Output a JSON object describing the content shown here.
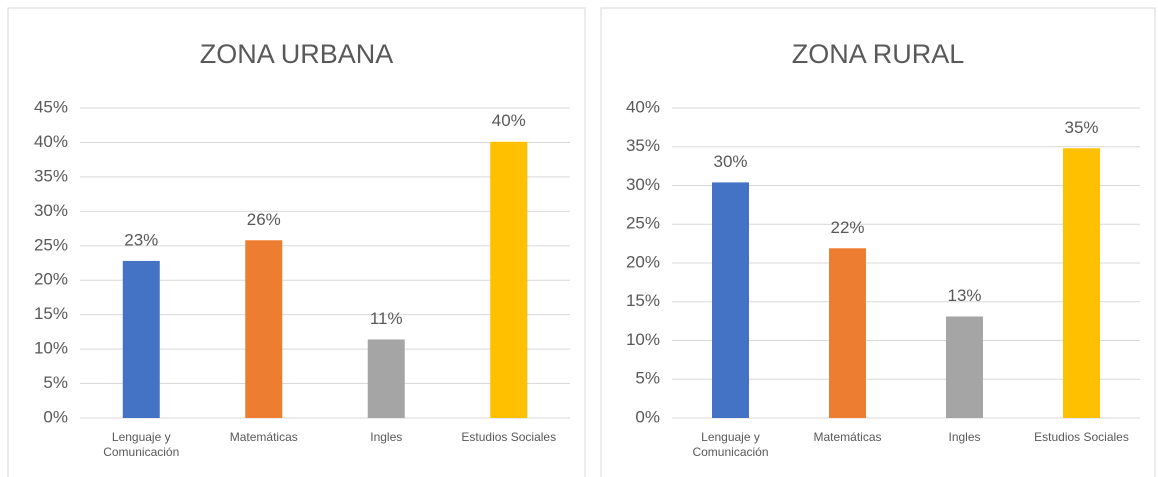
{
  "chart_data": [
    {
      "type": "bar",
      "title": "ZONA URBANA",
      "categories": [
        "Lenguaje y Comunicación",
        "Matemáticas",
        "Ingles",
        "Estudios Sociales"
      ],
      "values": [
        22.8,
        25.8,
        11.4,
        40.1
      ],
      "value_labels": [
        "23%",
        "26%",
        "11%",
        "40%"
      ],
      "colors": [
        "#4472c4",
        "#ed7d31",
        "#a5a5a5",
        "#ffc000"
      ],
      "ylim": [
        0,
        45
      ],
      "yticks": [
        {
          "value": 0,
          "label": "0%"
        },
        {
          "value": 5,
          "label": "5%"
        },
        {
          "value": 10,
          "label": "10%"
        },
        {
          "value": 15,
          "label": "15%"
        },
        {
          "value": 20,
          "label": "20%"
        },
        {
          "value": 25,
          "label": "25%"
        },
        {
          "value": 30,
          "label": "30%"
        },
        {
          "value": 35,
          "label": "35%"
        },
        {
          "value": 40,
          "label": "40%"
        },
        {
          "value": 45,
          "label": "45%"
        }
      ],
      "grid": true
    },
    {
      "type": "bar",
      "title": "ZONA RURAL",
      "categories": [
        "Lenguaje y Comunicación",
        "Matemáticas",
        "Ingles",
        "Estudios Sociales"
      ],
      "values": [
        30.4,
        21.9,
        13.1,
        34.8
      ],
      "value_labels": [
        "30%",
        "22%",
        "13%",
        "35%"
      ],
      "colors": [
        "#4472c4",
        "#ed7d31",
        "#a5a5a5",
        "#ffc000"
      ],
      "ylim": [
        0,
        40
      ],
      "yticks": [
        {
          "value": 0,
          "label": "0%"
        },
        {
          "value": 5,
          "label": "5%"
        },
        {
          "value": 10,
          "label": "10%"
        },
        {
          "value": 15,
          "label": "15%"
        },
        {
          "value": 20,
          "label": "20%"
        },
        {
          "value": 25,
          "label": "25%"
        },
        {
          "value": 30,
          "label": "30%"
        },
        {
          "value": 35,
          "label": "35%"
        },
        {
          "value": 40,
          "label": "40%"
        }
      ],
      "grid": true
    }
  ]
}
